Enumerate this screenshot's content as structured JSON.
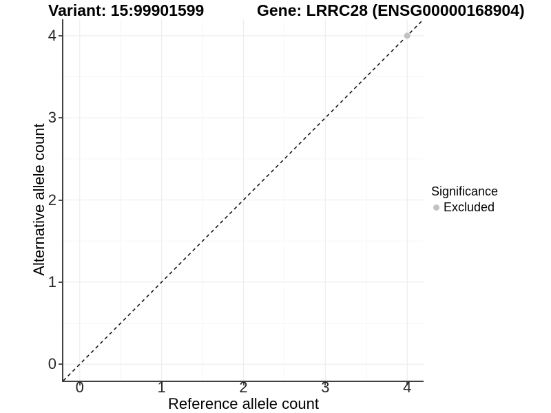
{
  "chart_data": {
    "type": "scatter",
    "title_variant": "Variant: 15:99901599",
    "title_gene": "Gene: LRRC28 (ENSG00000168904)",
    "xlabel": "Reference allele count",
    "ylabel": "Alternative allele count",
    "x_ticks": [
      0,
      1,
      2,
      3,
      4
    ],
    "y_ticks": [
      0,
      1,
      2,
      3,
      4
    ],
    "xlim": [
      -0.2,
      4.2
    ],
    "ylim": [
      -0.2,
      4.2
    ],
    "grid": {
      "major": true,
      "minor": true
    },
    "reference_line": {
      "type": "identity",
      "style": "dashed",
      "from": [
        -0.2,
        -0.2
      ],
      "to": [
        4.2,
        4.2
      ],
      "color": "#141414"
    },
    "series": [
      {
        "name": "Excluded",
        "color": "#c2c2c2",
        "points": [
          [
            4,
            4
          ]
        ]
      }
    ],
    "legend": {
      "title": "Significance",
      "position": "right",
      "items": [
        {
          "label": "Excluded",
          "color": "#c2c2c2"
        }
      ]
    },
    "colors": {
      "grid_major": "#ededed",
      "grid_minor": "#f6f6f6",
      "axis_line": "#404040",
      "tick_mark": "#4d4d4d",
      "tick_label": "#262626",
      "point": "#c2c2c2"
    }
  }
}
